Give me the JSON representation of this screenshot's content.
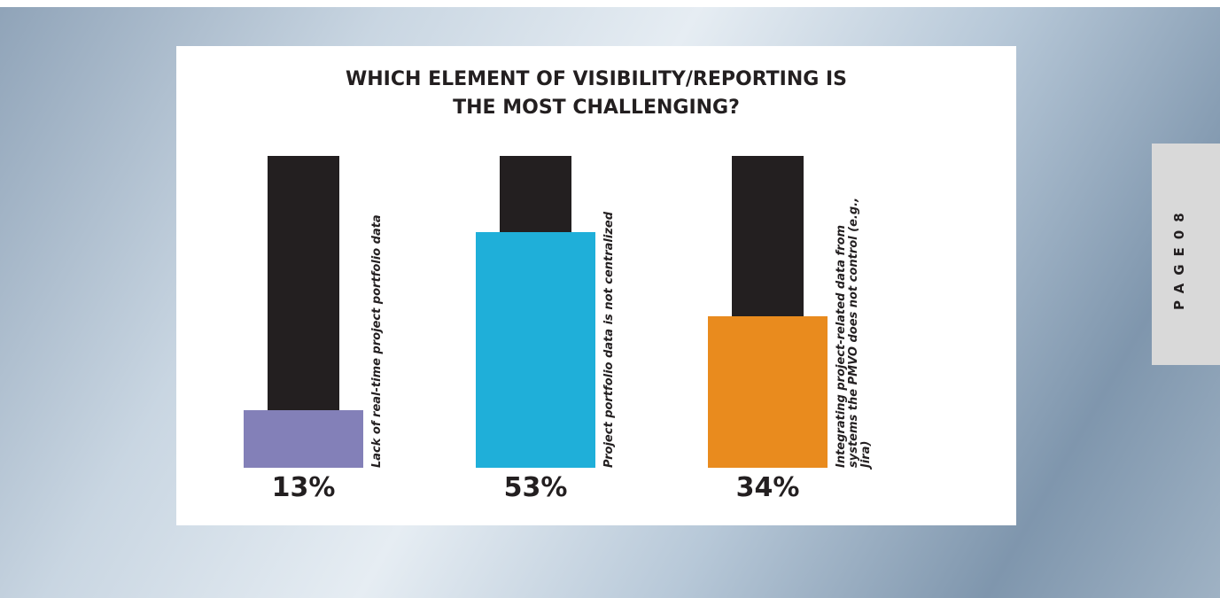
{
  "chart_data": {
    "type": "bar",
    "title": "WHICH ELEMENT OF VISIBILITY/REPORTING IS THE MOST CHALLENGING?",
    "categories": [
      "Lack of real-time project portfolio data",
      "Project portfolio data is not centralized",
      "Integrating project-related data from systems the PMVO does not control (e.g., Jira)"
    ],
    "values": [
      13,
      53,
      34
    ],
    "value_labels": [
      "13%",
      "53%",
      "34%"
    ],
    "colors": [
      "#8380b8",
      "#1fafd9",
      "#e98b1e"
    ],
    "track_color": "#231f20"
  },
  "page_label": "PAGE08"
}
